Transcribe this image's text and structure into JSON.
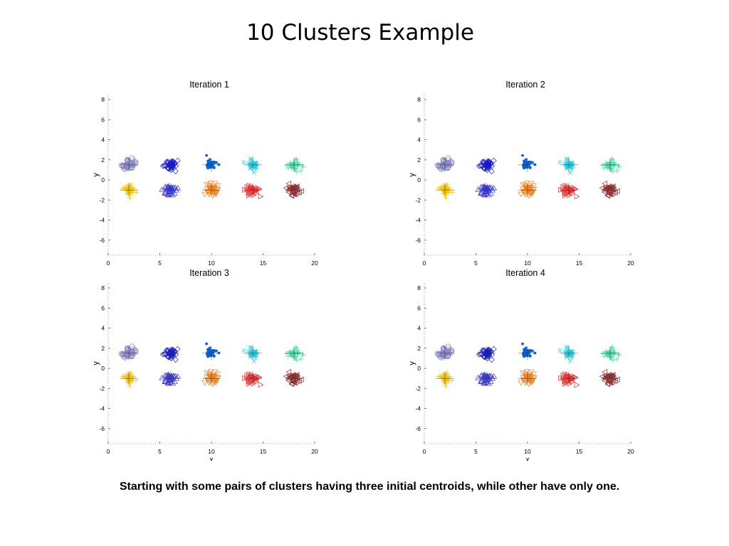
{
  "slide": {
    "title": "10 Clusters Example",
    "caption": "Starting with some pairs of clusters having three initial centroids, while other have only one."
  },
  "chart_data": [
    {
      "type": "scatter",
      "title": "Iteration 1",
      "xlabel": "",
      "ylabel": "y",
      "xlim": [
        0,
        20
      ],
      "ylim": [
        -7.5,
        8.5
      ],
      "xticks": [
        0,
        5,
        10,
        15,
        20
      ],
      "yticks": [
        -6,
        -4,
        -2,
        0,
        2,
        4,
        6,
        8
      ],
      "grid": false,
      "clusters": [
        {
          "x": 2.0,
          "y": 1.5,
          "marker": "circle",
          "color": "#8080c0"
        },
        {
          "x": 6.0,
          "y": 1.5,
          "marker": "diamond",
          "color": "#1a1ac8"
        },
        {
          "x": 10.0,
          "y": 1.5,
          "marker": "dot",
          "color": "#0a5fd0"
        },
        {
          "x": 14.0,
          "y": 1.5,
          "marker": "x",
          "color": "#22c8e0"
        },
        {
          "x": 18.0,
          "y": 1.5,
          "marker": "plus",
          "color": "#40d8a0"
        },
        {
          "x": 2.0,
          "y": -1.0,
          "marker": "plus",
          "color": "#f0c000"
        },
        {
          "x": 6.0,
          "y": -1.0,
          "marker": "triangle-up",
          "color": "#3a3ad0"
        },
        {
          "x": 10.0,
          "y": -1.0,
          "marker": "triangle-down",
          "color": "#f08020"
        },
        {
          "x": 14.0,
          "y": -1.0,
          "marker": "triangle-right",
          "color": "#e03030"
        },
        {
          "x": 18.0,
          "y": -1.0,
          "marker": "triangle-left",
          "color": "#903030"
        }
      ]
    },
    {
      "type": "scatter",
      "title": "Iteration 2",
      "xlabel": "",
      "ylabel": "y",
      "xlim": [
        0,
        20
      ],
      "ylim": [
        -7.5,
        8.5
      ],
      "xticks": [
        0,
        5,
        10,
        15,
        20
      ],
      "yticks": [
        -6,
        -4,
        -2,
        0,
        2,
        4,
        6,
        8
      ],
      "grid": false,
      "clusters": [
        {
          "x": 2.0,
          "y": 1.5,
          "marker": "circle",
          "color": "#8080c0"
        },
        {
          "x": 6.0,
          "y": 1.5,
          "marker": "diamond",
          "color": "#1a1ac8"
        },
        {
          "x": 10.0,
          "y": 1.5,
          "marker": "dot",
          "color": "#0a5fd0"
        },
        {
          "x": 14.0,
          "y": 1.5,
          "marker": "x",
          "color": "#22c8e0"
        },
        {
          "x": 18.0,
          "y": 1.5,
          "marker": "plus",
          "color": "#40d8a0"
        },
        {
          "x": 2.0,
          "y": -1.0,
          "marker": "plus",
          "color": "#f0c000"
        },
        {
          "x": 6.0,
          "y": -1.0,
          "marker": "triangle-up",
          "color": "#3a3ad0"
        },
        {
          "x": 10.0,
          "y": -1.0,
          "marker": "triangle-down",
          "color": "#f08020"
        },
        {
          "x": 14.0,
          "y": -1.0,
          "marker": "triangle-right",
          "color": "#e03030"
        },
        {
          "x": 18.0,
          "y": -1.0,
          "marker": "triangle-left",
          "color": "#903030"
        }
      ]
    },
    {
      "type": "scatter",
      "title": "Iteration 3",
      "xlabel": "x",
      "ylabel": "y",
      "xlim": [
        0,
        20
      ],
      "ylim": [
        -7.5,
        8.5
      ],
      "xticks": [
        0,
        5,
        10,
        15,
        20
      ],
      "yticks": [
        -6,
        -4,
        -2,
        0,
        2,
        4,
        6,
        8
      ],
      "grid": false,
      "clusters": [
        {
          "x": 2.0,
          "y": 1.5,
          "marker": "circle",
          "color": "#8080c0"
        },
        {
          "x": 6.0,
          "y": 1.5,
          "marker": "diamond",
          "color": "#1a1ac8"
        },
        {
          "x": 10.0,
          "y": 1.5,
          "marker": "dot",
          "color": "#0a5fd0"
        },
        {
          "x": 14.0,
          "y": 1.5,
          "marker": "x",
          "color": "#22c8e0"
        },
        {
          "x": 18.0,
          "y": 1.5,
          "marker": "plus",
          "color": "#40d8a0"
        },
        {
          "x": 2.0,
          "y": -1.0,
          "marker": "plus",
          "color": "#f0c000"
        },
        {
          "x": 6.0,
          "y": -1.0,
          "marker": "triangle-up",
          "color": "#3a3ad0"
        },
        {
          "x": 10.0,
          "y": -1.0,
          "marker": "triangle-down",
          "color": "#f08020"
        },
        {
          "x": 14.0,
          "y": -1.0,
          "marker": "triangle-right",
          "color": "#e03030"
        },
        {
          "x": 18.0,
          "y": -1.0,
          "marker": "triangle-left",
          "color": "#903030"
        }
      ]
    },
    {
      "type": "scatter",
      "title": "Iteration 4",
      "xlabel": "x",
      "ylabel": "y",
      "xlim": [
        0,
        20
      ],
      "ylim": [
        -7.5,
        8.5
      ],
      "xticks": [
        0,
        5,
        10,
        15,
        20
      ],
      "yticks": [
        -6,
        -4,
        -2,
        0,
        2,
        4,
        6,
        8
      ],
      "grid": false,
      "clusters": [
        {
          "x": 2.0,
          "y": 1.5,
          "marker": "circle",
          "color": "#8080c0"
        },
        {
          "x": 6.0,
          "y": 1.5,
          "marker": "diamond",
          "color": "#1a1ac8"
        },
        {
          "x": 10.0,
          "y": 1.5,
          "marker": "dot",
          "color": "#0a5fd0"
        },
        {
          "x": 14.0,
          "y": 1.5,
          "marker": "x",
          "color": "#22c8e0"
        },
        {
          "x": 18.0,
          "y": 1.5,
          "marker": "plus",
          "color": "#40d8a0"
        },
        {
          "x": 2.0,
          "y": -1.0,
          "marker": "plus",
          "color": "#f0c000"
        },
        {
          "x": 6.0,
          "y": -1.0,
          "marker": "triangle-up",
          "color": "#3a3ad0"
        },
        {
          "x": 10.0,
          "y": -1.0,
          "marker": "triangle-down",
          "color": "#f08020"
        },
        {
          "x": 14.0,
          "y": -1.0,
          "marker": "triangle-right",
          "color": "#e03030"
        },
        {
          "x": 18.0,
          "y": -1.0,
          "marker": "triangle-left",
          "color": "#903030"
        }
      ]
    }
  ]
}
